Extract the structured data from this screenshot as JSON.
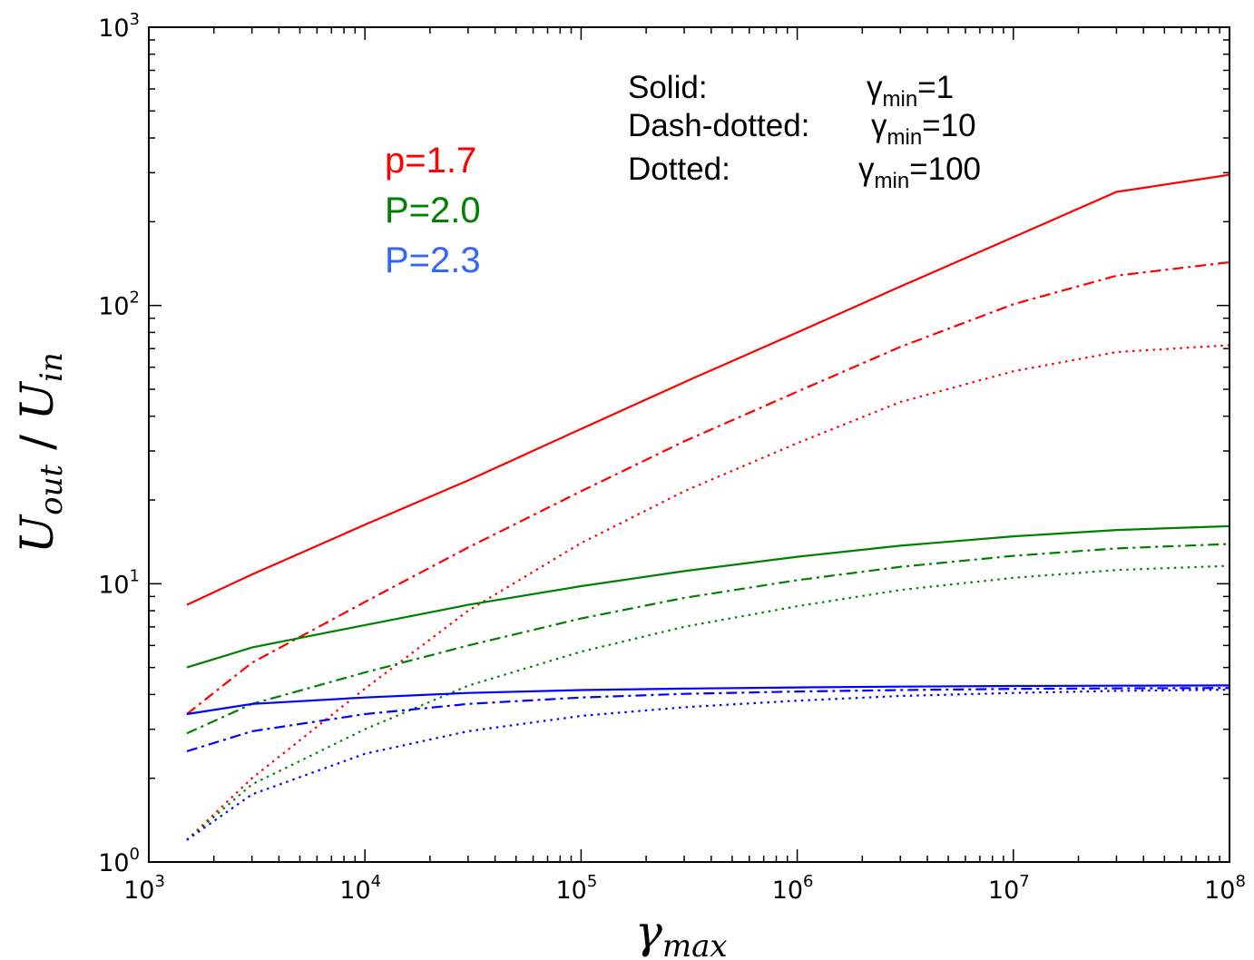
{
  "chart_data": {
    "type": "line",
    "title": "",
    "xlabel": {
      "base": "γ",
      "sub": "max"
    },
    "ylabel": {
      "num_base": "U",
      "num_sub": "out",
      "sep": " / ",
      "den_base": "U",
      "den_sub": "in"
    },
    "xscale": "log",
    "yscale": "log",
    "xlim": [
      1000,
      100000000
    ],
    "ylim": [
      1,
      1000
    ],
    "grid": false,
    "x_ticks": [
      {
        "base": "10",
        "exp": "3",
        "value": 1000
      },
      {
        "base": "10",
        "exp": "4",
        "value": 10000
      },
      {
        "base": "10",
        "exp": "5",
        "value": 100000
      },
      {
        "base": "10",
        "exp": "6",
        "value": 1000000
      },
      {
        "base": "10",
        "exp": "7",
        "value": 10000000
      },
      {
        "base": "10",
        "exp": "8",
        "value": 100000000
      }
    ],
    "y_ticks": [
      {
        "base": "10",
        "exp": "0",
        "value": 1
      },
      {
        "base": "10",
        "exp": "1",
        "value": 10
      },
      {
        "base": "10",
        "exp": "2",
        "value": 100
      },
      {
        "base": "10",
        "exp": "3",
        "value": 1000
      }
    ],
    "x": [
      1500,
      3000,
      10000,
      30000,
      100000,
      300000,
      1000000,
      3000000,
      10000000,
      30000000,
      100000000
    ],
    "series": [
      {
        "color": "#ff0000",
        "style": "solid",
        "values": [
          8.4,
          10.8,
          16.3,
          23.5,
          36,
          53,
          80,
          117,
          176,
          256,
          295
        ]
      },
      {
        "color": "#ff0000",
        "style": "dashdot",
        "values": [
          3.4,
          5.2,
          8.6,
          13.5,
          21.5,
          32.5,
          49,
          71,
          101,
          128,
          143
        ]
      },
      {
        "color": "#ff0000",
        "style": "dotted",
        "values": [
          1.2,
          2.0,
          4.2,
          8.0,
          14.0,
          21.5,
          32,
          45,
          58,
          68,
          72
        ]
      },
      {
        "color": "#008000",
        "style": "solid",
        "values": [
          5.0,
          5.9,
          7.1,
          8.4,
          9.8,
          11.1,
          12.5,
          13.7,
          14.8,
          15.6,
          16.1
        ]
      },
      {
        "color": "#008000",
        "style": "dashdot",
        "values": [
          2.9,
          3.7,
          4.8,
          6.0,
          7.5,
          8.9,
          10.3,
          11.5,
          12.6,
          13.4,
          13.9
        ]
      },
      {
        "color": "#008000",
        "style": "dotted",
        "values": [
          1.2,
          1.9,
          3.0,
          4.3,
          5.7,
          7.0,
          8.3,
          9.5,
          10.5,
          11.2,
          11.6
        ]
      },
      {
        "color": "#0000ff",
        "style": "solid",
        "values": [
          3.4,
          3.7,
          3.9,
          4.05,
          4.15,
          4.2,
          4.24,
          4.27,
          4.29,
          4.3,
          4.31
        ]
      },
      {
        "color": "#0000ff",
        "style": "dashdot",
        "values": [
          2.5,
          2.95,
          3.4,
          3.7,
          3.9,
          4.02,
          4.1,
          4.15,
          4.19,
          4.21,
          4.22
        ]
      },
      {
        "color": "#0000ff",
        "style": "dotted",
        "values": [
          1.2,
          1.75,
          2.45,
          2.95,
          3.35,
          3.6,
          3.8,
          3.95,
          4.05,
          4.12,
          4.16
        ]
      }
    ],
    "legend": [
      {
        "text": "p=1.7",
        "color": "#ff0000"
      },
      {
        "text": "P=2.0",
        "color": "#008000"
      },
      {
        "text": "P=2.3",
        "color": "#3366ff"
      }
    ],
    "annotations": [
      {
        "label": "Solid:",
        "gamma": "γ",
        "sub": "min",
        "value": "=1"
      },
      {
        "label": "Dash-dotted:",
        "gamma": "γ",
        "sub": "min",
        "value": "=10"
      },
      {
        "label": "Dotted:",
        "gamma": "γ",
        "sub": "min",
        "value": "=100"
      }
    ]
  }
}
